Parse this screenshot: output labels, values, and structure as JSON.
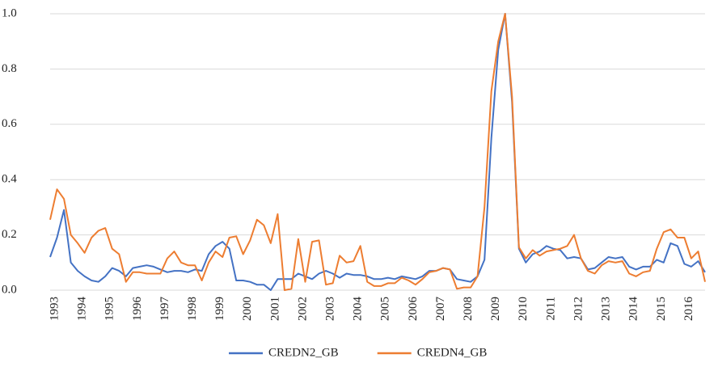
{
  "chart_data": {
    "type": "line",
    "categories": [
      "1993",
      null,
      null,
      null,
      "1994",
      null,
      null,
      null,
      "1995",
      null,
      null,
      null,
      "1996",
      null,
      null,
      null,
      "1997",
      null,
      null,
      null,
      "1998",
      null,
      null,
      null,
      "1999",
      null,
      null,
      null,
      "2000",
      null,
      null,
      null,
      "2001",
      null,
      null,
      null,
      "2002",
      null,
      null,
      null,
      "2003",
      null,
      null,
      null,
      "2004",
      null,
      null,
      null,
      "2005",
      null,
      null,
      null,
      "2006",
      null,
      null,
      null,
      "2007",
      null,
      null,
      null,
      "2008",
      null,
      null,
      null,
      "2009",
      null,
      null,
      null,
      "2010",
      null,
      null,
      null,
      "2011",
      null,
      null,
      null,
      "2012",
      null,
      null,
      null,
      "2013",
      null,
      null,
      null,
      "2014",
      null,
      null,
      null,
      "2015",
      null,
      null,
      null,
      "2016",
      null,
      null,
      null
    ],
    "series": [
      {
        "name": "CREDN2_GB",
        "color": "#4472c4",
        "values": [
          0.12,
          0.19,
          0.29,
          0.1,
          0.07,
          0.05,
          0.035,
          0.03,
          0.05,
          0.08,
          0.07,
          0.05,
          0.08,
          0.085,
          0.09,
          0.085,
          0.075,
          0.065,
          0.07,
          0.07,
          0.065,
          0.075,
          0.07,
          0.13,
          0.16,
          0.175,
          0.15,
          0.035,
          0.035,
          0.03,
          0.02,
          0.02,
          0.0,
          0.04,
          0.04,
          0.04,
          0.06,
          0.05,
          0.04,
          0.06,
          0.07,
          0.06,
          0.045,
          0.06,
          0.055,
          0.055,
          0.05,
          0.04,
          0.04,
          0.045,
          0.04,
          0.05,
          0.045,
          0.04,
          0.05,
          0.07,
          0.07,
          0.08,
          0.075,
          0.04,
          0.035,
          0.03,
          0.05,
          0.11,
          0.55,
          0.87,
          1.0,
          0.68,
          0.15,
          0.1,
          0.13,
          0.14,
          0.16,
          0.15,
          0.145,
          0.115,
          0.12,
          0.115,
          0.075,
          0.08,
          0.1,
          0.12,
          0.115,
          0.12,
          0.085,
          0.075,
          0.085,
          0.085,
          0.11,
          0.1,
          0.17,
          0.16,
          0.095,
          0.085,
          0.105,
          0.065
        ]
      },
      {
        "name": "CREDN4_GB",
        "color": "#ed7d31",
        "values": [
          0.255,
          0.365,
          0.33,
          0.2,
          0.17,
          0.135,
          0.19,
          0.215,
          0.225,
          0.15,
          0.13,
          0.03,
          0.065,
          0.065,
          0.06,
          0.06,
          0.06,
          0.115,
          0.14,
          0.1,
          0.09,
          0.09,
          0.035,
          0.1,
          0.14,
          0.12,
          0.19,
          0.195,
          0.13,
          0.18,
          0.255,
          0.235,
          0.17,
          0.275,
          0.0,
          0.005,
          0.185,
          0.03,
          0.175,
          0.18,
          0.02,
          0.025,
          0.125,
          0.1,
          0.105,
          0.16,
          0.03,
          0.015,
          0.015,
          0.025,
          0.025,
          0.045,
          0.035,
          0.02,
          0.04,
          0.065,
          0.07,
          0.08,
          0.075,
          0.005,
          0.01,
          0.01,
          0.05,
          0.3,
          0.72,
          0.9,
          1.0,
          0.7,
          0.155,
          0.115,
          0.145,
          0.125,
          0.14,
          0.145,
          0.15,
          0.16,
          0.2,
          0.115,
          0.07,
          0.06,
          0.09,
          0.105,
          0.1,
          0.105,
          0.06,
          0.05,
          0.065,
          0.07,
          0.15,
          0.21,
          0.22,
          0.19,
          0.19,
          0.115,
          0.14,
          0.03
        ]
      }
    ],
    "ylim": [
      0,
      1
    ],
    "yticks": [
      {
        "value": 0,
        "label": "0.0"
      },
      {
        "value": 0.2,
        "label": "0.2"
      },
      {
        "value": 0.4,
        "label": "0.4"
      },
      {
        "value": 0.6,
        "label": "0.6"
      },
      {
        "value": 0.8,
        "label": "0.8"
      },
      {
        "value": 1,
        "label": "1.0"
      }
    ],
    "grid": true,
    "legend": "bottom"
  }
}
